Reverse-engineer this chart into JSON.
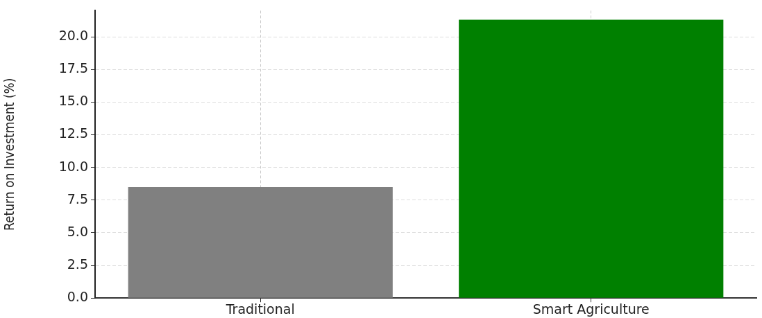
{
  "chart_data": {
    "type": "bar",
    "ylabel": "Return on Investment (%)",
    "categories": [
      "Traditional",
      "Smart Agriculture"
    ],
    "values": [
      8.5,
      21.3
    ],
    "colors": [
      "#808080",
      "#008000"
    ],
    "ylim": [
      0,
      22
    ],
    "yticks": [
      {
        "value": 0,
        "label": "0.0"
      },
      {
        "value": 2.5,
        "label": "2.5"
      },
      {
        "value": 5,
        "label": "5.0"
      },
      {
        "value": 7.5,
        "label": "7.5"
      },
      {
        "value": 10,
        "label": "10.0"
      },
      {
        "value": 12.5,
        "label": "12.5"
      },
      {
        "value": 15,
        "label": "15.0"
      },
      {
        "value": 17.5,
        "label": "17.5"
      },
      {
        "value": 20,
        "label": "20.0"
      }
    ],
    "grid": true
  }
}
